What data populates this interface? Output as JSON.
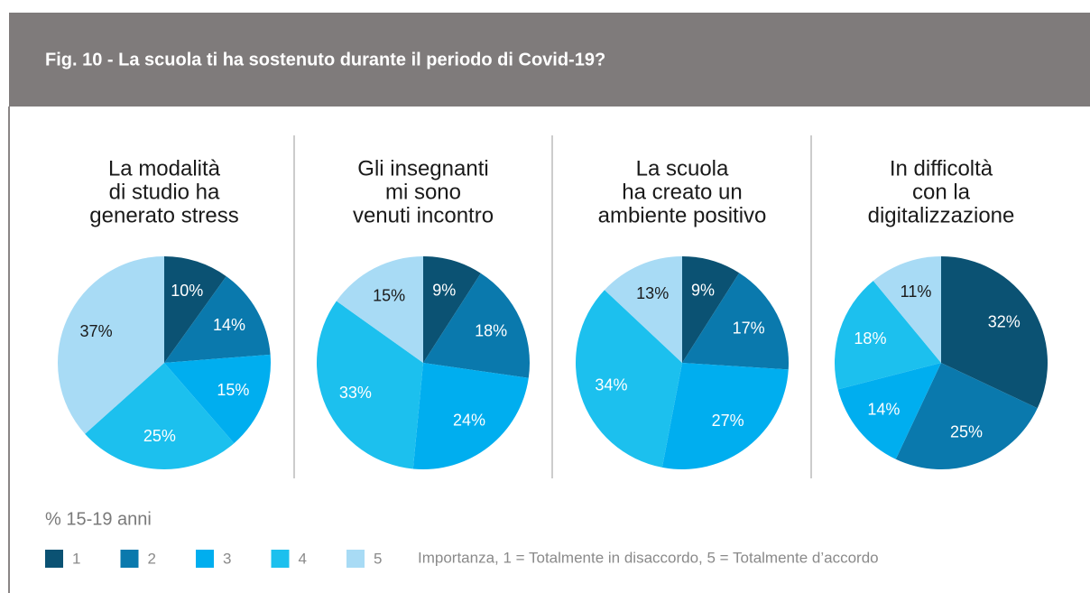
{
  "title": "Fig. 10 - La scuola ti ha sostenuto durante il periodo di Covid-19?",
  "subtitle": "% 15-19 anni",
  "legend": {
    "labels": [
      "1",
      "2",
      "3",
      "4",
      "5"
    ],
    "colors": [
      "#0b5273",
      "#0a79ad",
      "#00aeef",
      "#1cc0ee",
      "#a8dbf5"
    ],
    "note": "Importanza, 1 = Totalmente in disaccordo, 5 = Totalmente d’accordo"
  },
  "chart_data": [
    {
      "type": "pie",
      "title": [
        "La modalità",
        "di studio ha",
        "generato stress"
      ],
      "values": [
        10,
        14,
        15,
        25,
        37
      ],
      "value_labels": [
        "10%",
        "14%",
        "15%",
        "25%",
        "37%"
      ]
    },
    {
      "type": "pie",
      "title": [
        "Gli insegnanti",
        "mi sono",
        "venuti incontro"
      ],
      "values": [
        9,
        18,
        24,
        33,
        15
      ],
      "value_labels": [
        "9%",
        "18%",
        "24%",
        "33%",
        "15%"
      ]
    },
    {
      "type": "pie",
      "title": [
        "La scuola",
        "ha creato un",
        "ambiente positivo"
      ],
      "values": [
        9,
        17,
        27,
        34,
        13
      ],
      "value_labels": [
        "9%",
        "17%",
        "27%",
        "34%",
        "13%"
      ]
    },
    {
      "type": "pie",
      "title": [
        "In difficoltà",
        "con la",
        "digitalizzazione"
      ],
      "values": [
        32,
        25,
        14,
        18,
        11
      ],
      "value_labels": [
        "32%",
        "25%",
        "14%",
        "18%",
        "11%"
      ]
    }
  ]
}
